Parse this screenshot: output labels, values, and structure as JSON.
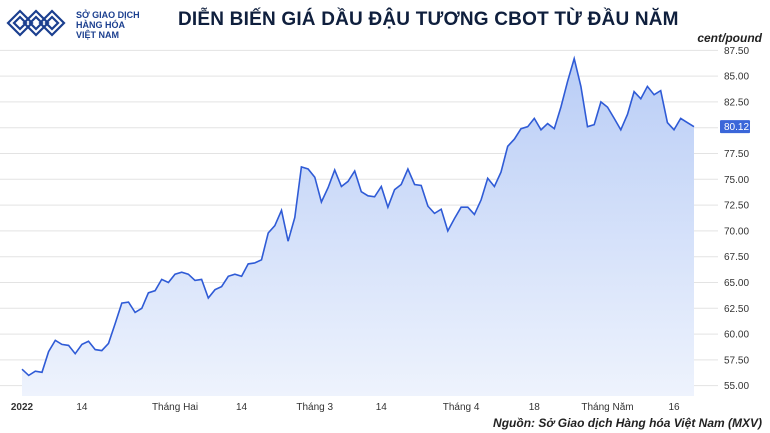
{
  "logo": {
    "line1": "SỞ GIAO DỊCH",
    "line2": "HÀNG HÓA",
    "line3": "VIỆT NAM",
    "color": "#1b3f8f"
  },
  "title": "DIỄN BIẾN GIÁ DẦU ĐẬU TƯƠNG CBOT TỪ ĐẦU NĂM",
  "unit": "cent/pound",
  "source": "Nguồn: Sở Giao dịch Hàng hóa Việt Nam (MXV)",
  "colors": {
    "line": "#2f5bd6",
    "fill_top": "#b9cdf6",
    "fill_bottom": "#eef3fd",
    "grid": "#e3e3e3",
    "last_label_bg": "#3a66d9"
  },
  "chart_data": {
    "type": "area",
    "title": "DIỄN BIẾN GIÁ DẦU ĐẬU TƯƠNG CBOT TỪ ĐẦU NĂM",
    "ylabel": "cent/pound",
    "ylim": [
      54.0,
      88.5
    ],
    "y_ticks": [
      55.0,
      57.5,
      60.0,
      62.5,
      65.0,
      67.5,
      70.0,
      72.5,
      75.0,
      77.5,
      80.0,
      82.5,
      85.0,
      87.5
    ],
    "y_tick_labels": [
      "55.00",
      "57.50",
      "60.00",
      "62.50",
      "65.00",
      "67.50",
      "70.00",
      "72.50",
      "75.00",
      "77.50",
      "80.00",
      "82.50",
      "85.00",
      "87.50"
    ],
    "x_tick_labels": [
      "2022",
      "14",
      "Tháng Hai",
      "14",
      "Tháng 3",
      "14",
      "Tháng 4",
      "18",
      "Tháng Năm",
      "16"
    ],
    "x_tick_index": [
      0,
      9,
      23,
      33,
      44,
      54,
      66,
      77,
      88,
      98
    ],
    "last_value_label": "80.12",
    "grid": true,
    "series": [
      {
        "values": [
          56.6,
          56.0,
          56.4,
          56.3,
          58.3,
          59.4,
          59.0,
          58.9,
          58.1,
          59.0,
          59.3,
          58.5,
          58.4,
          59.1,
          61.0,
          63.0,
          63.1,
          62.1,
          62.5,
          64.0,
          64.2,
          65.3,
          65.0,
          65.8,
          66.0,
          65.8,
          65.2,
          65.3,
          63.5,
          64.3,
          64.6,
          65.6,
          65.8,
          65.6,
          66.8,
          66.9,
          67.2,
          69.8,
          70.5,
          72.0,
          69.0,
          71.3,
          76.2,
          76.0,
          75.2,
          72.8,
          74.2,
          75.9,
          74.3,
          74.8,
          75.8,
          73.8,
          73.4,
          73.3,
          74.3,
          72.3,
          74.0,
          74.5,
          76.0,
          74.5,
          74.4,
          72.4,
          71.7,
          72.1,
          70.0,
          71.2,
          72.3,
          72.3,
          71.6,
          73.0,
          75.1,
          74.3,
          75.7,
          78.2,
          78.9,
          79.9,
          80.1,
          80.9,
          79.8,
          80.4,
          79.9,
          82.0,
          84.5,
          86.7,
          84.0,
          80.1,
          80.3,
          82.5,
          82.0,
          80.9,
          79.8,
          81.3,
          83.5,
          82.8,
          84.0,
          83.2,
          83.6,
          80.5,
          79.8,
          80.9,
          80.5,
          80.1
        ]
      }
    ]
  }
}
